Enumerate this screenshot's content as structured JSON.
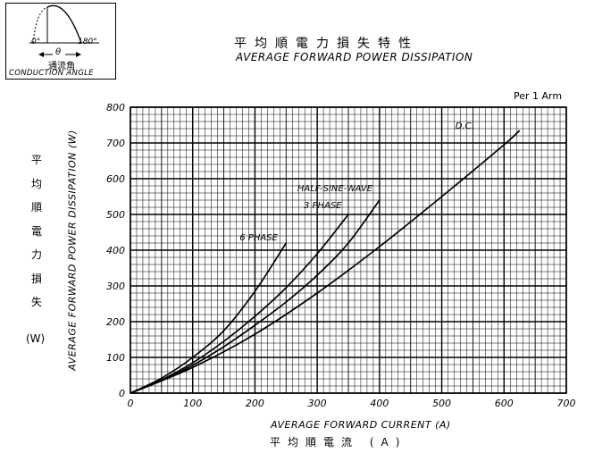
{
  "conduction_box": {
    "deg0": "0°",
    "deg180": "180°",
    "theta": "θ",
    "jp": "通流角",
    "en": "CONDUCTION ANGLE"
  },
  "per_arm": "Per 1 Arm",
  "chart_data": {
    "type": "line",
    "title": "平均順電力損失特性",
    "subtitle": "AVERAGE FORWARD POWER DISSIPATION",
    "xlabel": "AVERAGE FORWARD CURRENT (A)",
    "xlabel_jp": "平均順電流 (A)",
    "ylabel": "AVERAGE FORWARD POWER DISSIPATION (W)",
    "ylabel_jp": "平均順電力損失",
    "ylabel_jp_unit": "(W)",
    "xlim": [
      0,
      700
    ],
    "ylim": [
      0,
      800
    ],
    "x_ticks": [
      0,
      100,
      200,
      300,
      400,
      500,
      600,
      700
    ],
    "y_ticks": [
      0,
      100,
      200,
      300,
      400,
      500,
      600,
      700,
      800
    ],
    "grid": true,
    "series": [
      {
        "name": "6 PHASE",
        "x": [
          0,
          50,
          100,
          150,
          200,
          250
        ],
        "y": [
          0,
          42,
          100,
          175,
          285,
          420
        ]
      },
      {
        "name": "3 PHASE",
        "x": [
          0,
          50,
          100,
          150,
          200,
          250,
          300,
          350
        ],
        "y": [
          0,
          37,
          85,
          145,
          215,
          295,
          390,
          500
        ]
      },
      {
        "name": "HALF-SINE-WAVE",
        "x": [
          0,
          50,
          100,
          150,
          200,
          250,
          300,
          350,
          400
        ],
        "y": [
          0,
          35,
          78,
          130,
          190,
          255,
          330,
          420,
          540
        ]
      },
      {
        "name": "D.C.",
        "x": [
          0,
          100,
          200,
          300,
          400,
          500,
          600,
          625
        ],
        "y": [
          0,
          72,
          165,
          280,
          410,
          550,
          695,
          735
        ]
      }
    ]
  }
}
